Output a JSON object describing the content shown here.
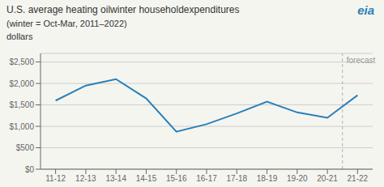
{
  "chart_data": {
    "type": "line",
    "title": "U.S. average heating oilwinter householdexpenditures",
    "subtitle": "(winter = Oct-Mar, 2011–2022)",
    "ylabel": "dollars",
    "categories": [
      "11-12",
      "12-13",
      "13-14",
      "14-15",
      "15-16",
      "16-17",
      "17-18",
      "18-19",
      "19-20",
      "20-21",
      "21-22"
    ],
    "values": [
      1600,
      1950,
      2100,
      1650,
      875,
      1050,
      1300,
      1575,
      1325,
      1200,
      1725
    ],
    "color": "#2980b9",
    "ylim": [
      0,
      2700
    ],
    "yticks": [
      {
        "value": 0,
        "label": "$0"
      },
      {
        "value": 500,
        "label": "$500"
      },
      {
        "value": 1000,
        "label": "$1,000"
      },
      {
        "value": 1500,
        "label": "$1,500"
      },
      {
        "value": 2000,
        "label": "$2,000"
      },
      {
        "value": 2500,
        "label": "$2,500"
      }
    ],
    "grid": true,
    "annotations": [
      {
        "text": "forecast",
        "category": "21-22"
      },
      {
        "text": "eia"
      }
    ]
  }
}
